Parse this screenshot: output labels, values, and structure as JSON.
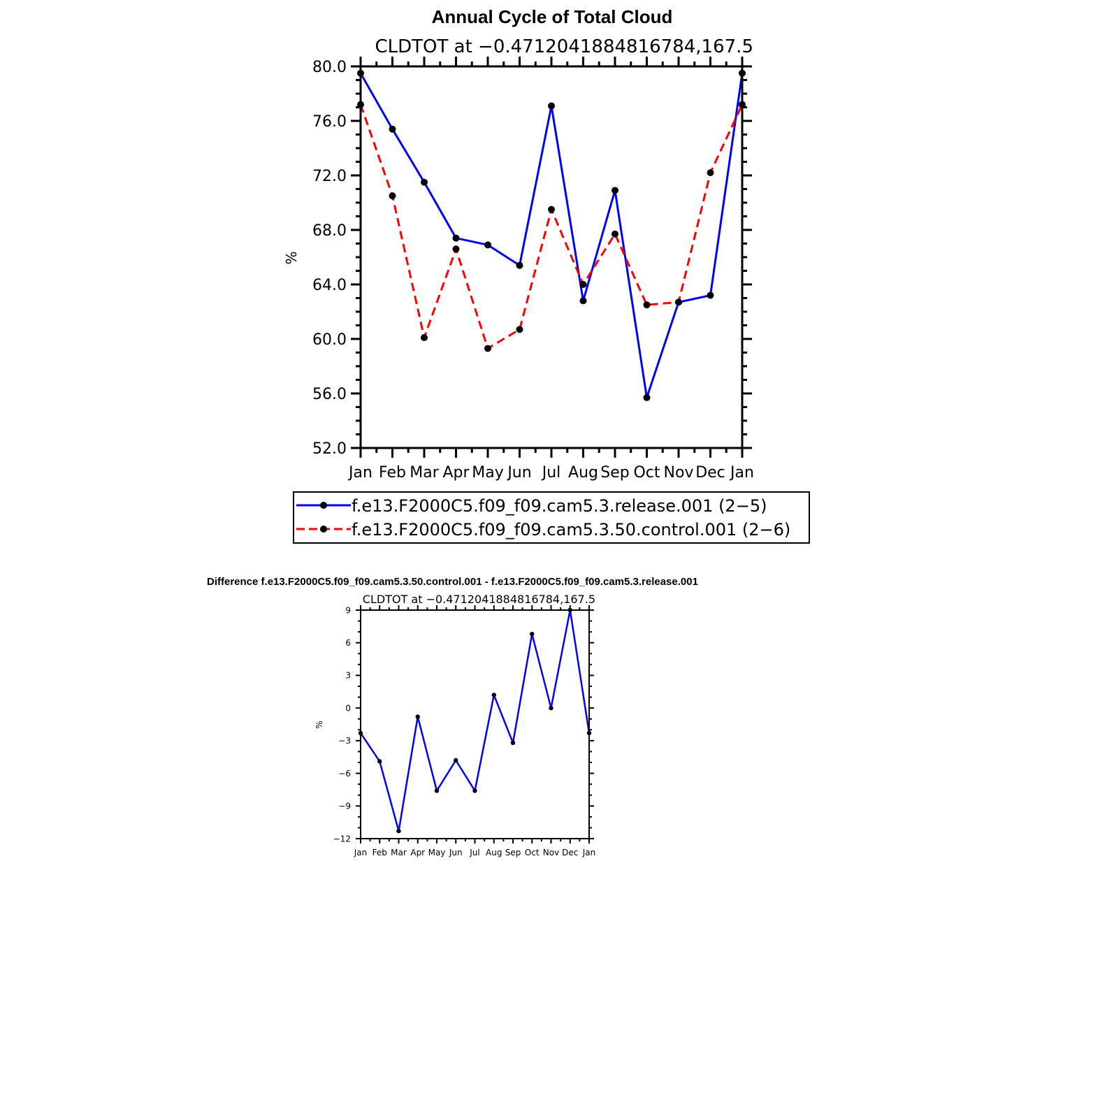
{
  "chart_data": [
    {
      "type": "line",
      "title": "Annual Cycle of Total Cloud",
      "subtitle": "CLDTOT at −0.4712041884816784,167.5",
      "ylabel": "%",
      "xlabel": "",
      "categories": [
        "Jan",
        "Feb",
        "Mar",
        "Apr",
        "May",
        "Jun",
        "Jul",
        "Aug",
        "Sep",
        "Oct",
        "Nov",
        "Dec",
        "Jan"
      ],
      "ylim": [
        52,
        80
      ],
      "yticks": [
        52,
        56,
        60,
        64,
        68,
        72,
        76,
        80
      ],
      "ytick_labels": [
        "52.0",
        "56.0",
        "60.0",
        "64.0",
        "68.0",
        "72.0",
        "76.0",
        "80.0"
      ],
      "grid": false,
      "legend_position": "bottom",
      "series": [
        {
          "name": "f.e13.F2000C5.f09_f09.cam5.3.release.001 (2−5)",
          "color": "#0000ff",
          "dash": "solid",
          "values": [
            79.5,
            75.4,
            71.5,
            67.4,
            66.9,
            65.4,
            77.1,
            62.8,
            70.9,
            55.7,
            62.7,
            63.2,
            79.5
          ]
        },
        {
          "name": "f.e13.F2000C5.f09_f09.cam5.3.50.control.001 (2−6)",
          "color": "#ff0000",
          "dash": "dashed",
          "values": [
            77.2,
            70.5,
            60.1,
            66.6,
            59.3,
            60.7,
            69.5,
            64.0,
            67.7,
            62.5,
            62.7,
            72.2,
            77.2
          ]
        }
      ]
    },
    {
      "type": "line",
      "title": "Difference f.e13.F2000C5.f09_f09.cam5.3.50.control.001 - f.e13.F2000C5.f09_f09.cam5.3.release.001",
      "subtitle": "CLDTOT at −0.4712041884816784,167.5",
      "ylabel": "%",
      "xlabel": "",
      "categories": [
        "Jan",
        "Feb",
        "Mar",
        "Apr",
        "May",
        "Jun",
        "Jul",
        "Aug",
        "Sep",
        "Oct",
        "Nov",
        "Dec",
        "Jan"
      ],
      "ylim": [
        -12,
        9
      ],
      "yticks": [
        -12,
        -9,
        -6,
        -3,
        0,
        3,
        6,
        9
      ],
      "ytick_labels": [
        "−12",
        "−9",
        "−6",
        "−3",
        "0",
        "3",
        "6",
        "9"
      ],
      "grid": false,
      "series": [
        {
          "name": "difference",
          "color": "#0000ff",
          "dash": "solid",
          "values": [
            -2.3,
            -4.9,
            -11.3,
            -0.8,
            -7.6,
            -4.8,
            -7.6,
            1.2,
            -3.2,
            6.8,
            0.0,
            9.0,
            -2.3
          ]
        }
      ]
    }
  ]
}
